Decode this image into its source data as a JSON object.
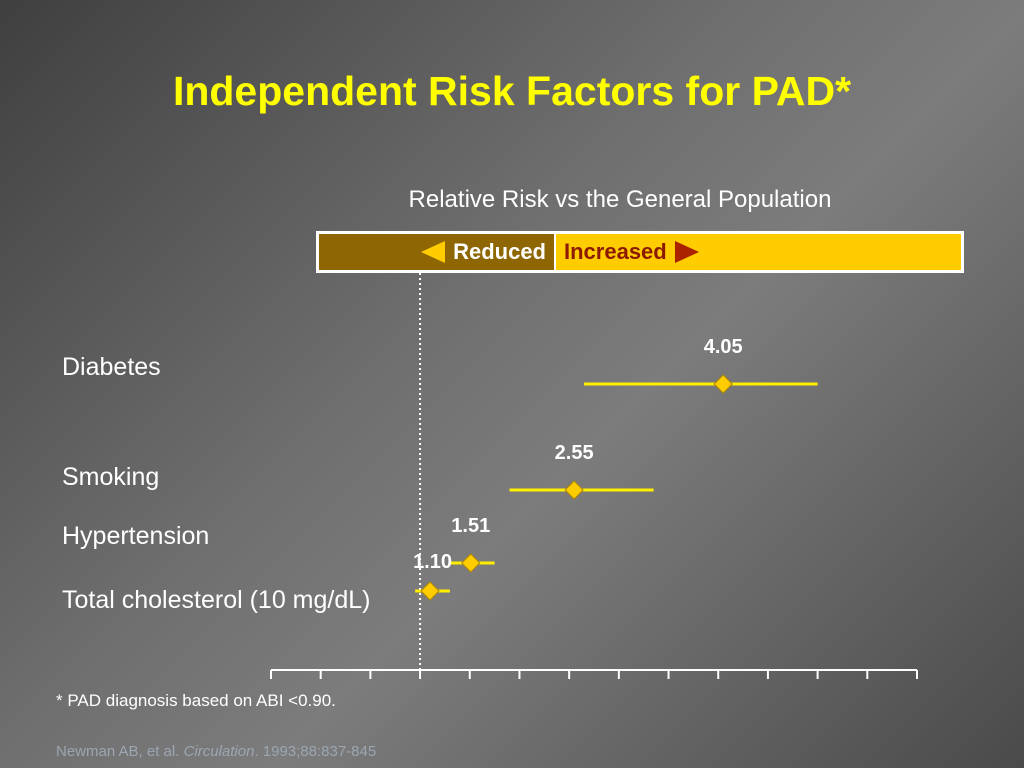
{
  "title": "Independent Risk Factors for PAD*",
  "chart_data": {
    "type": "forest",
    "subtitle": "Relative Risk vs the General Population",
    "direction": {
      "reduced": "Reduced",
      "increased": "Increased"
    },
    "reference_value": 1.0,
    "categories": [
      "Diabetes",
      "Smoking",
      "Hypertension",
      "Total cholesterol (10 mg/dL)"
    ],
    "points": [
      {
        "label": "Diabetes",
        "value": 4.05,
        "value_label": "4.05",
        "ci": [
          2.65,
          5.0
        ]
      },
      {
        "label": "Smoking",
        "value": 2.55,
        "value_label": "2.55",
        "ci": [
          1.9,
          3.35
        ]
      },
      {
        "label": "Hypertension",
        "value": 1.51,
        "value_label": "1.51",
        "ci": [
          1.3,
          1.75
        ]
      },
      {
        "label": "Total cholesterol (10 mg/dL)",
        "value": 1.1,
        "value_label": "1.10",
        "ci": [
          0.95,
          1.3
        ]
      }
    ],
    "xlim": [
      -0.5,
      6.0
    ],
    "tick_step": 0.5,
    "colors": {
      "line": "#ffee00",
      "marker": "#ffcc00",
      "axis": "#ffffff",
      "reference": "#ffffff"
    }
  },
  "footnote": "* PAD diagnosis based on ABI <0.90.",
  "citation": {
    "authors": "Newman AB, et al. ",
    "journal": "Circulation",
    "details": ". 1993;88:837-845"
  }
}
